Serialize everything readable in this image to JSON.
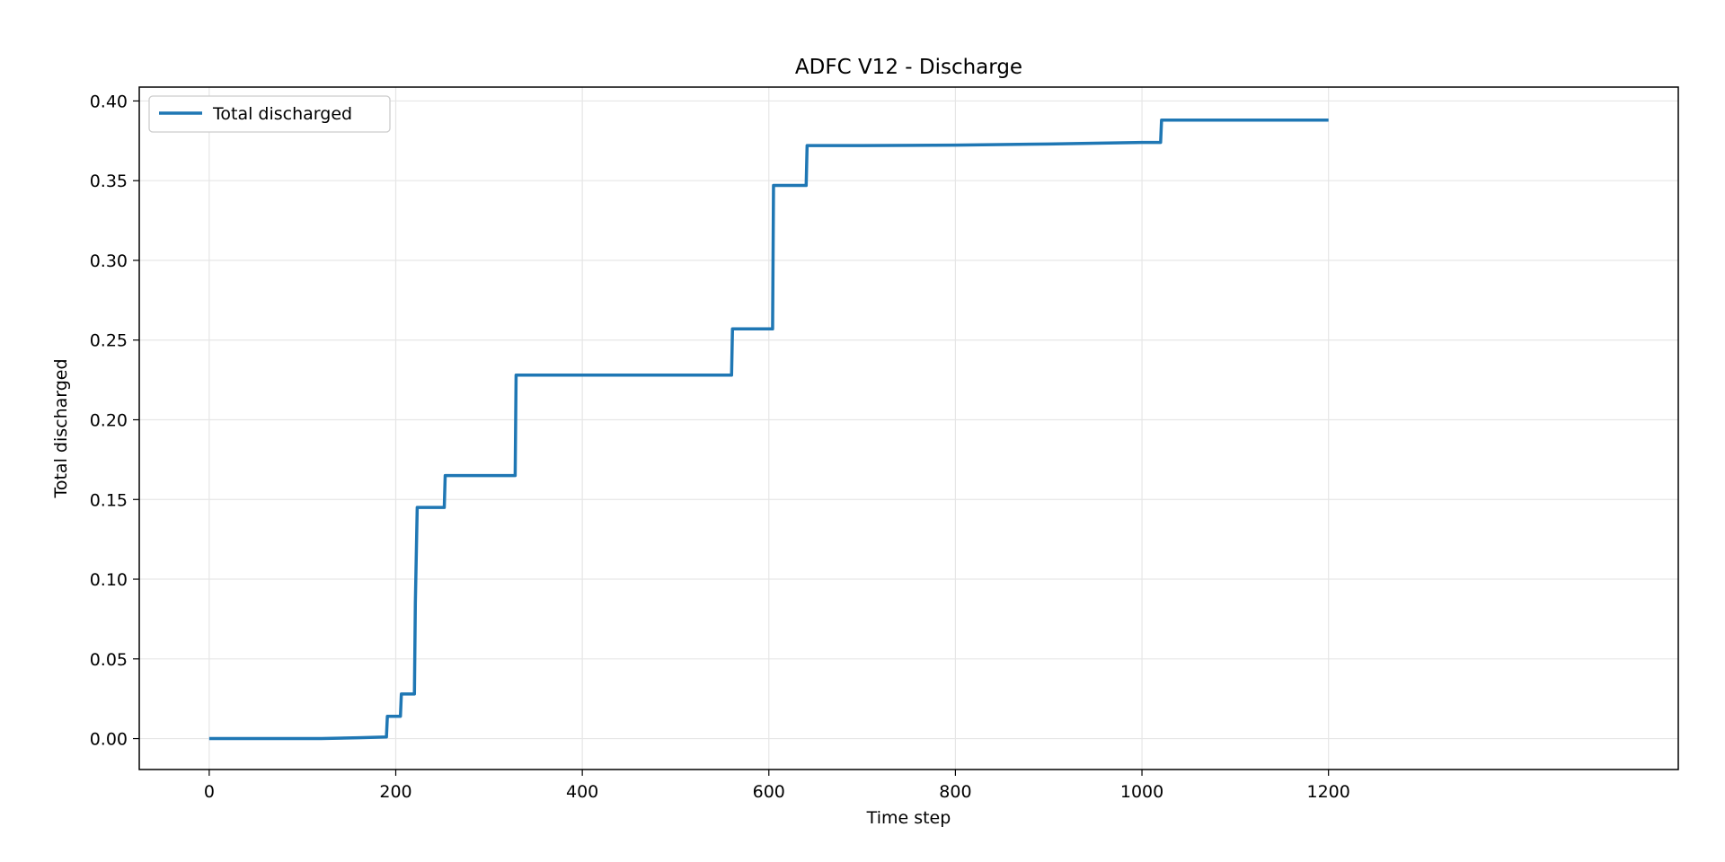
{
  "chart_data": {
    "type": "line",
    "title": "ADFC V12 - Discharge",
    "xlabel": "Time step",
    "ylabel": "Total discharged",
    "xlim": [
      -75,
      1575
    ],
    "ylim": [
      -0.0194,
      0.4087
    ],
    "xticks": [
      0,
      200,
      400,
      600,
      800,
      1000,
      1200
    ],
    "yticks": [
      0.0,
      0.05,
      0.1,
      0.15,
      0.2,
      0.25,
      0.3,
      0.35,
      0.4
    ],
    "xtick_labels": [
      "0",
      "200",
      "400",
      "600",
      "800",
      "1000",
      "1200"
    ],
    "ytick_labels": [
      "0.00",
      "0.05",
      "0.10",
      "0.15",
      "0.20",
      "0.25",
      "0.30",
      "0.35",
      "0.40"
    ],
    "grid": true,
    "legend_position": "upper-left",
    "series": [
      {
        "name": "Total discharged",
        "color": "#1f77b4",
        "x": [
          0,
          120,
          160,
          190,
          191,
          205,
          206,
          220,
          221,
          223,
          252,
          253,
          328,
          329,
          560,
          561,
          604,
          605,
          640,
          641,
          700,
          800,
          900,
          1000,
          1020,
          1021,
          1050,
          1200
        ],
        "y": [
          0.0,
          0.0,
          0.0005,
          0.001,
          0.014,
          0.014,
          0.028,
          0.028,
          0.085,
          0.145,
          0.145,
          0.165,
          0.165,
          0.228,
          0.228,
          0.257,
          0.257,
          0.347,
          0.347,
          0.372,
          0.372,
          0.3723,
          0.373,
          0.374,
          0.374,
          0.388,
          0.388,
          0.388
        ]
      }
    ]
  }
}
